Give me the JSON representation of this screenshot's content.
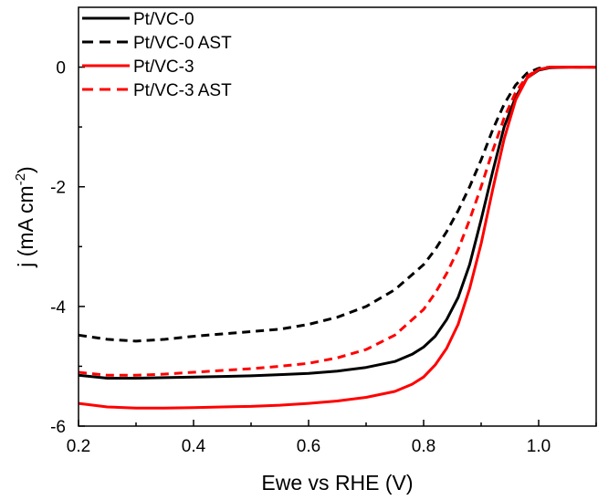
{
  "chart_data": {
    "type": "line",
    "xlabel": "Ewe vs RHE (V)",
    "ylabel_main": "j (mA cm",
    "ylabel_sup": "-2",
    "ylabel_close": ")",
    "xlim": [
      0.2,
      1.1
    ],
    "ylim": [
      -6,
      1.0
    ],
    "x_ticks": [
      0.2,
      0.4,
      0.6,
      0.8,
      1.0
    ],
    "x_tick_labels": [
      "0.2",
      "0.4",
      "0.6",
      "0.8",
      "1.0"
    ],
    "y_ticks": [
      -6,
      -4,
      -2,
      0
    ],
    "y_tick_labels": [
      "-6",
      "-4",
      "-2",
      "0"
    ],
    "grid": false,
    "legend_position": "top-left",
    "series": [
      {
        "name": "Pt/VC-0",
        "color": "#000000",
        "dash": "solid",
        "x": [
          0.2,
          0.25,
          0.3,
          0.35,
          0.4,
          0.45,
          0.5,
          0.55,
          0.6,
          0.65,
          0.7,
          0.75,
          0.78,
          0.8,
          0.82,
          0.84,
          0.86,
          0.88,
          0.9,
          0.92,
          0.94,
          0.96,
          0.98,
          1.0,
          1.02,
          1.05,
          1.1
        ],
        "y": [
          -5.15,
          -5.2,
          -5.2,
          -5.19,
          -5.18,
          -5.17,
          -5.16,
          -5.14,
          -5.12,
          -5.08,
          -5.02,
          -4.92,
          -4.8,
          -4.68,
          -4.5,
          -4.22,
          -3.85,
          -3.3,
          -2.55,
          -1.75,
          -1.0,
          -0.5,
          -0.18,
          -0.05,
          -0.01,
          0.0,
          0.0
        ]
      },
      {
        "name": "Pt/VC-0 AST",
        "color": "#000000",
        "dash": "dashed",
        "x": [
          0.2,
          0.25,
          0.3,
          0.35,
          0.4,
          0.45,
          0.5,
          0.55,
          0.6,
          0.65,
          0.7,
          0.75,
          0.8,
          0.82,
          0.84,
          0.86,
          0.88,
          0.9,
          0.92,
          0.94,
          0.96,
          0.98,
          1.0,
          1.02,
          1.05,
          1.1
        ],
        "y": [
          -4.48,
          -4.55,
          -4.58,
          -4.55,
          -4.5,
          -4.46,
          -4.42,
          -4.38,
          -4.3,
          -4.18,
          -4.0,
          -3.72,
          -3.3,
          -3.05,
          -2.75,
          -2.4,
          -2.0,
          -1.55,
          -1.05,
          -0.62,
          -0.3,
          -0.1,
          -0.02,
          0.0,
          0.0,
          0.0
        ]
      },
      {
        "name": "Pt/VC-3",
        "color": "#ff0000",
        "dash": "solid",
        "x": [
          0.2,
          0.25,
          0.3,
          0.35,
          0.4,
          0.45,
          0.5,
          0.55,
          0.6,
          0.65,
          0.7,
          0.75,
          0.78,
          0.8,
          0.82,
          0.84,
          0.86,
          0.88,
          0.9,
          0.92,
          0.94,
          0.96,
          0.98,
          1.0,
          1.02,
          1.05,
          1.1
        ],
        "y": [
          -5.62,
          -5.68,
          -5.7,
          -5.7,
          -5.69,
          -5.68,
          -5.67,
          -5.65,
          -5.62,
          -5.58,
          -5.52,
          -5.42,
          -5.3,
          -5.18,
          -4.98,
          -4.7,
          -4.3,
          -3.7,
          -2.95,
          -2.05,
          -1.2,
          -0.55,
          -0.18,
          -0.04,
          0.0,
          0.0,
          0.0
        ]
      },
      {
        "name": "Pt/VC-3 AST",
        "color": "#ff0000",
        "dash": "dashed",
        "x": [
          0.2,
          0.25,
          0.3,
          0.35,
          0.4,
          0.45,
          0.5,
          0.55,
          0.6,
          0.65,
          0.7,
          0.75,
          0.8,
          0.82,
          0.84,
          0.86,
          0.88,
          0.9,
          0.92,
          0.94,
          0.96,
          0.98,
          1.0,
          1.02,
          1.05,
          1.1
        ],
        "y": [
          -5.1,
          -5.15,
          -5.15,
          -5.13,
          -5.1,
          -5.07,
          -5.04,
          -5.0,
          -4.95,
          -4.86,
          -4.72,
          -4.48,
          -4.05,
          -3.78,
          -3.45,
          -3.05,
          -2.55,
          -2.0,
          -1.4,
          -0.85,
          -0.42,
          -0.15,
          -0.04,
          0.0,
          0.0,
          0.0
        ]
      }
    ]
  }
}
